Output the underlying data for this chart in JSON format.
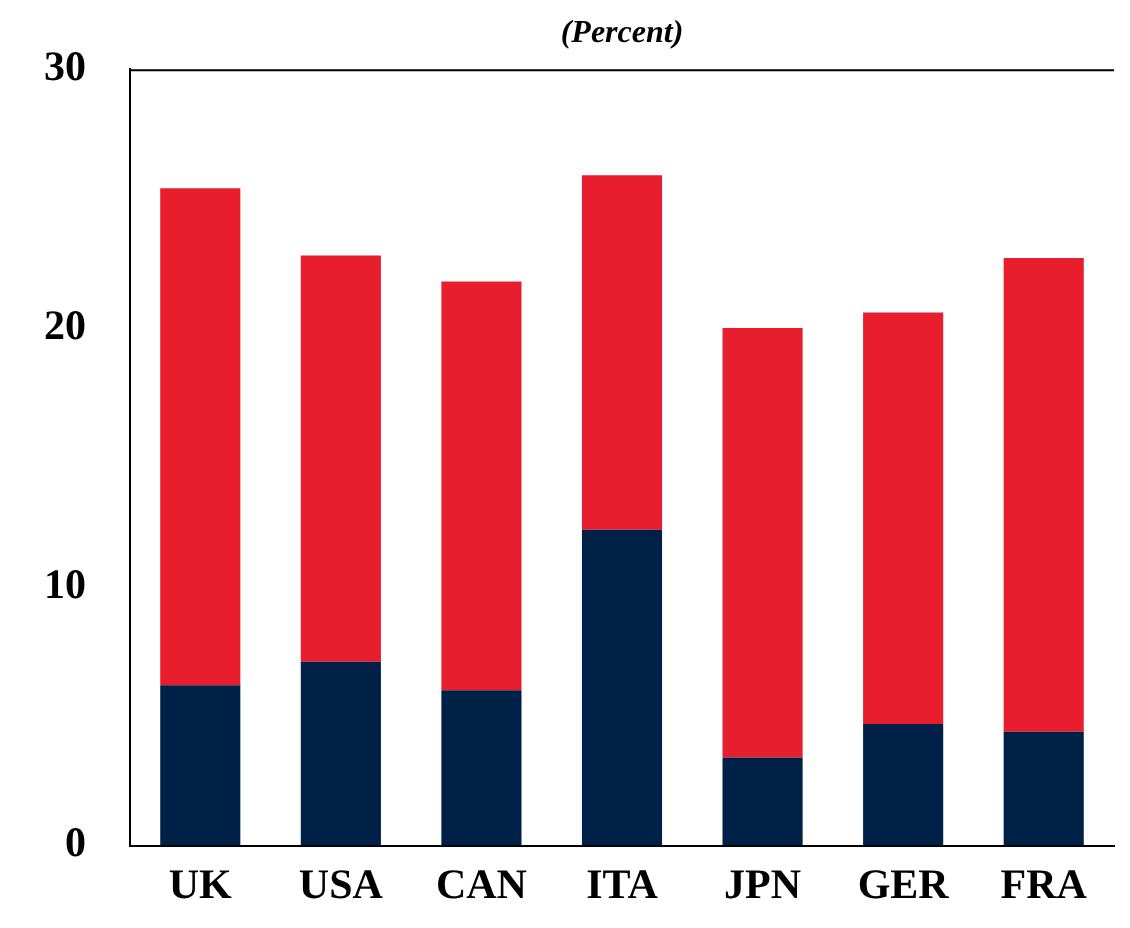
{
  "chart_data": {
    "type": "bar",
    "subtitle": "(Percent)",
    "stacked": true,
    "categories": [
      "UK",
      "USA",
      "CAN",
      "ITA",
      "JPN",
      "GER",
      "FRA"
    ],
    "series": [
      {
        "color": "#002147",
        "values": [
          6.2,
          7.1,
          6.0,
          12.2,
          3.4,
          4.7,
          4.4
        ]
      },
      {
        "color": "#e81e2e",
        "values": [
          19.2,
          15.7,
          15.8,
          13.7,
          16.6,
          15.9,
          18.3
        ]
      }
    ],
    "ylim": [
      0,
      30
    ],
    "yticks": [
      0,
      10,
      20,
      30
    ],
    "grid": false,
    "legend": false
  }
}
